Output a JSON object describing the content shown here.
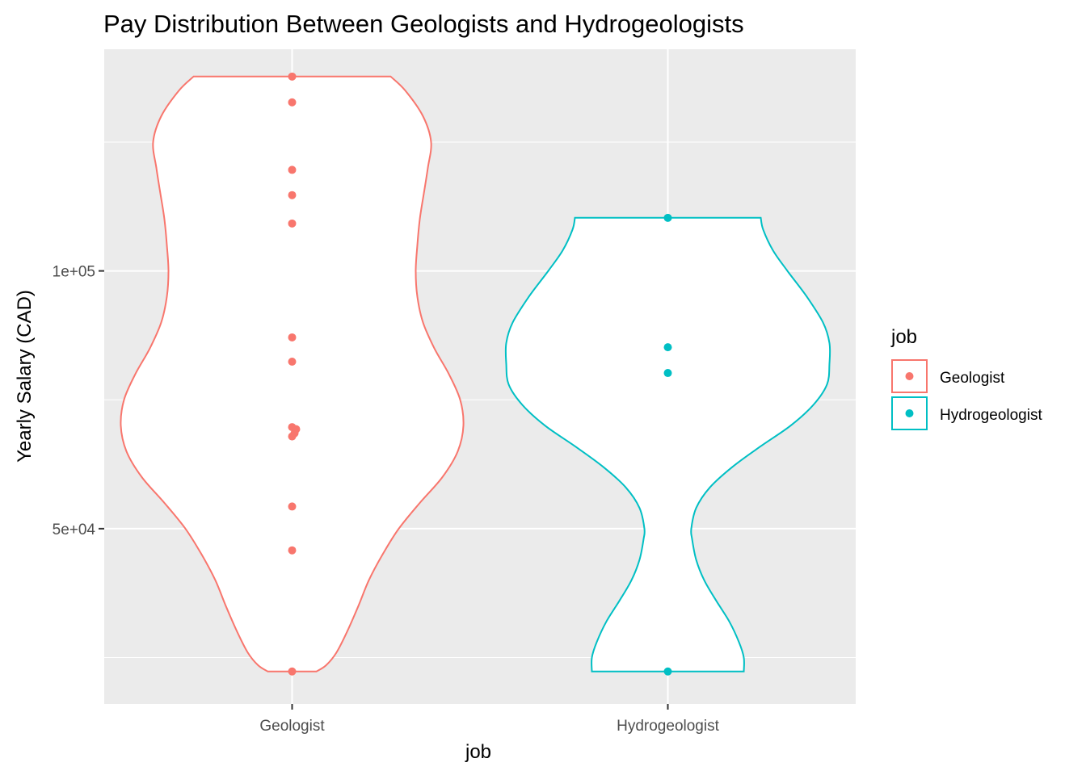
{
  "chart_data": {
    "type": "violin",
    "title": "Pay Distribution Between Geologists and Hydrogeologists",
    "xlabel": "job",
    "ylabel": "Yearly Salary (CAD)",
    "categories": [
      "Geologist",
      "Hydrogeologist"
    ],
    "y_ticks": [
      {
        "value": 50000,
        "label": "5e+04"
      },
      {
        "value": 100000,
        "label": "1e+05"
      }
    ],
    "y_minor_ticks": [
      25000,
      75000,
      125000
    ],
    "ylim": [
      16000,
      143000
    ],
    "grid": true,
    "legend": {
      "title": "job",
      "placement": "right",
      "entries": [
        "Geologist",
        "Hydrogeologist"
      ]
    },
    "colors": {
      "Geologist": "#F8766D",
      "Hydrogeologist": "#00BFC4",
      "panel": "#EBEBEB",
      "grid": "#FFFFFF"
    },
    "series": [
      {
        "name": "Geologist",
        "points": [
          137700,
          132700,
          119600,
          114700,
          109200,
          87100,
          82400,
          69700,
          69300,
          68500,
          67900,
          54300,
          45800,
          22300
        ],
        "violin_profile": [
          [
            22300,
            0.3
          ],
          [
            23500,
            0.42
          ],
          [
            26000,
            0.55
          ],
          [
            30000,
            0.68
          ],
          [
            35000,
            0.82
          ],
          [
            40000,
            0.95
          ],
          [
            45000,
            1.12
          ],
          [
            50000,
            1.32
          ],
          [
            55000,
            1.58
          ],
          [
            60000,
            1.86
          ],
          [
            65000,
            2.05
          ],
          [
            70000,
            2.12
          ],
          [
            75000,
            2.08
          ],
          [
            80000,
            1.94
          ],
          [
            85000,
            1.76
          ],
          [
            90000,
            1.62
          ],
          [
            95000,
            1.55
          ],
          [
            100000,
            1.53
          ],
          [
            105000,
            1.55
          ],
          [
            110000,
            1.58
          ],
          [
            115000,
            1.63
          ],
          [
            120000,
            1.68
          ],
          [
            125000,
            1.72
          ],
          [
            130000,
            1.62
          ],
          [
            135000,
            1.4
          ],
          [
            137700,
            1.22
          ]
        ]
      },
      {
        "name": "Hydrogeologist",
        "points": [
          110300,
          85200,
          80200,
          22300
        ],
        "violin_profile": [
          [
            22300,
            0.94
          ],
          [
            25000,
            0.94
          ],
          [
            28000,
            0.88
          ],
          [
            32000,
            0.76
          ],
          [
            36000,
            0.6
          ],
          [
            40000,
            0.45
          ],
          [
            44000,
            0.35
          ],
          [
            48000,
            0.3
          ],
          [
            50000,
            0.29
          ],
          [
            54000,
            0.35
          ],
          [
            58000,
            0.52
          ],
          [
            62000,
            0.8
          ],
          [
            66000,
            1.15
          ],
          [
            70000,
            1.52
          ],
          [
            74000,
            1.8
          ],
          [
            78000,
            1.97
          ],
          [
            82000,
            2.0
          ],
          [
            86000,
            2.0
          ],
          [
            90000,
            1.92
          ],
          [
            95000,
            1.72
          ],
          [
            100000,
            1.48
          ],
          [
            104000,
            1.3
          ],
          [
            108000,
            1.18
          ],
          [
            110300,
            1.15
          ]
        ]
      }
    ]
  }
}
